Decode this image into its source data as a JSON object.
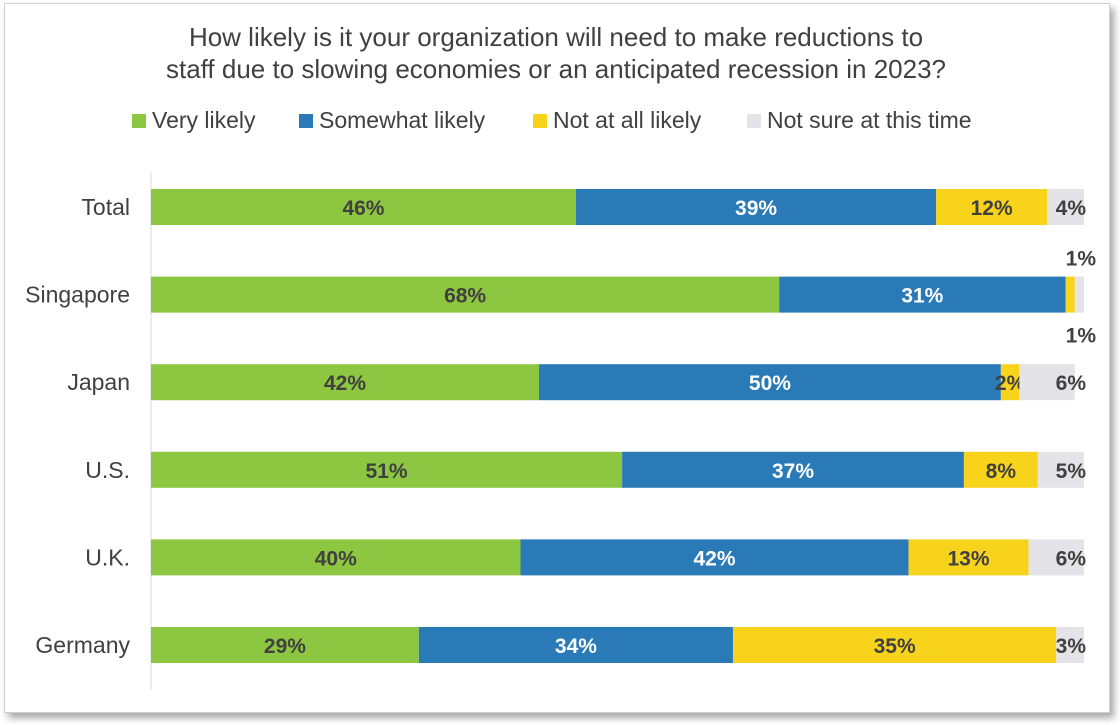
{
  "title_line1": "How likely is it your organization will need to make reductions to",
  "title_line2": "staff due to slowing economies or an anticipated recession in 2023?",
  "chart_data": {
    "type": "bar",
    "orientation": "horizontal",
    "stacked": true,
    "categories": [
      "Total",
      "Singapore",
      "Japan",
      "U.S.",
      "U.K.",
      "Germany"
    ],
    "series": [
      {
        "name": "Very likely",
        "color": "#8dc640",
        "label_color": "#404040",
        "values": [
          46,
          68,
          42,
          51,
          40,
          29
        ]
      },
      {
        "name": "Somewhat likely",
        "color": "#2a7ab7",
        "label_color": "#ffffff",
        "values": [
          39,
          31,
          50,
          37,
          42,
          34
        ]
      },
      {
        "name": "Not at all likely",
        "color": "#f7d31b",
        "label_color": "#404040",
        "values": [
          12,
          1,
          2,
          8,
          13,
          35
        ]
      },
      {
        "name": "Not sure at this time",
        "color": "#e3e3e8",
        "label_color": "#404040",
        "values": [
          4,
          1,
          6,
          5,
          6,
          3
        ]
      }
    ],
    "value_suffix": "%",
    "xlim": [
      0,
      101
    ],
    "legend_position": "top",
    "grid": false
  }
}
